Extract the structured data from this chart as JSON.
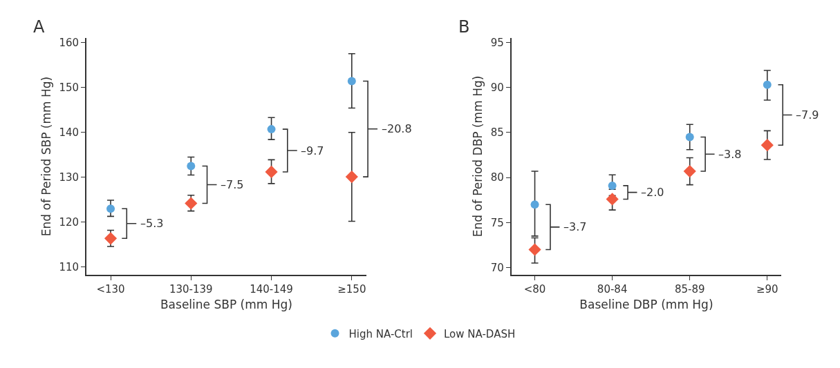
{
  "chart_data": [
    {
      "type": "scatter",
      "title": "A",
      "xlabel": "Baseline SBP (mm Hg)",
      "ylabel": "End of Period SBP (mm Hg)",
      "categories": [
        "<130",
        "130-139",
        "140-149",
        "≥150"
      ],
      "series": [
        {
          "name": "High NA-Ctrl",
          "color": "#5aa5dc",
          "marker": "circle",
          "values": [
            123.0,
            132.5,
            140.7,
            151.4
          ],
          "errors": [
            [
              121.3,
              124.9
            ],
            [
              130.5,
              134.5
            ],
            [
              138.4,
              143.3
            ],
            [
              145.4,
              157.5
            ]
          ]
        },
        {
          "name": "Low NA-DASH",
          "color": "#f05a40",
          "marker": "diamond",
          "values": [
            116.4,
            124.2,
            131.2,
            130.1
          ],
          "errors": [
            [
              114.6,
              118.2
            ],
            [
              122.5,
              126.0
            ],
            [
              128.6,
              133.9
            ],
            [
              120.2,
              140.0
            ]
          ]
        }
      ],
      "annotations": [
        "–5.3",
        "–7.5",
        "–9.7",
        "–20.8"
      ],
      "ylim": [
        108.3,
        161
      ],
      "yticks": [
        110,
        120,
        130,
        140,
        150,
        160
      ],
      "grid": false,
      "legend": "bottom"
    },
    {
      "type": "scatter",
      "title": "B",
      "xlabel": "Baseline DBP (mm Hg)",
      "ylabel": "End of Period DBP (mm Hg)",
      "categories": [
        "<80",
        "80-84",
        "85-89",
        "≥90"
      ],
      "series": [
        {
          "color": "#5aa5dc",
          "marker": "circle",
          "values": [
            77.0,
            79.1,
            84.5,
            90.3
          ],
          "errors": [
            [
              73.5,
              80.7
            ],
            [
              78.7,
              80.3
            ],
            [
              83.1,
              85.9
            ],
            [
              88.6,
              91.9
            ]
          ]
        },
        {
          "color": "#f05a40",
          "marker": "diamond",
          "values": [
            72.0,
            77.6,
            80.7,
            83.6
          ],
          "errors": [
            [
              70.5,
              73.3
            ],
            [
              76.4,
              78.0
            ],
            [
              79.2,
              82.2
            ],
            [
              82.0,
              85.2
            ]
          ]
        }
      ],
      "annotations": [
        "–3.7",
        "–2.0",
        "–3.8",
        "–7.9"
      ],
      "ylim": [
        69.2,
        95.5
      ],
      "yticks": [
        70,
        75,
        80,
        85,
        90,
        95
      ],
      "grid": false
    }
  ]
}
